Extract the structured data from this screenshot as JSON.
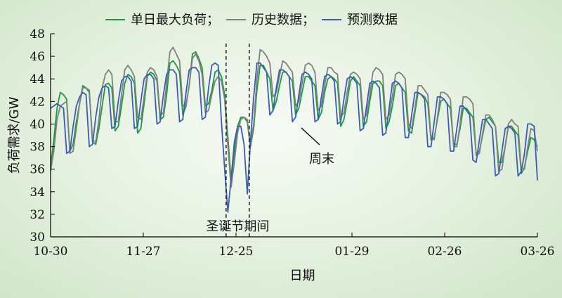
{
  "chart_data": {
    "type": "line",
    "xlabel": "日期",
    "ylabel": "负荷需求/GW",
    "ylim": [
      30,
      48
    ],
    "yticks": [
      30,
      32,
      34,
      36,
      38,
      40,
      42,
      44,
      46,
      48
    ],
    "x_start": "10-30",
    "x_end": "03-26",
    "xticks": [
      {
        "label": "10-30",
        "day": 0
      },
      {
        "label": "11-27",
        "day": 28
      },
      {
        "label": "12-25",
        "day": 56
      },
      {
        "label": "01-29",
        "day": 91
      },
      {
        "label": "02-26",
        "day": 119
      },
      {
        "label": "03-26",
        "day": 147
      }
    ],
    "grid": false,
    "legend_position": "top",
    "legend_separator": "；",
    "series": [
      {
        "name": "单日最大负荷",
        "color": "#1a9a3c",
        "values": [
          36.2,
          38.6,
          41.4,
          42.8,
          42.6,
          42.2,
          37.6,
          38.2,
          40.2,
          41.8,
          43.4,
          43.2,
          42.8,
          38.4,
          38.2,
          39.6,
          41.6,
          43.5,
          43.6,
          43.2,
          39.4,
          39.8,
          41.6,
          43.6,
          44.4,
          44.2,
          43.6,
          39.2,
          39.6,
          41.8,
          44.2,
          44.6,
          44.4,
          43.8,
          40.4,
          40.6,
          42.6,
          45.4,
          45.6,
          45.2,
          44.6,
          40.8,
          41.6,
          43.4,
          46.2,
          46.4,
          45.8,
          45.0,
          41.6,
          41.8,
          43.0,
          44.6,
          44.8,
          44.2,
          42.6,
          38.8,
          35.0,
          37.4,
          39.8,
          40.6,
          40.6,
          40.2,
          38.0,
          39.6,
          43.0,
          45.2,
          45.2,
          44.6,
          44.0,
          41.2,
          42.0,
          43.4,
          44.6,
          44.6,
          44.2,
          43.8,
          40.8,
          41.4,
          42.8,
          44.2,
          44.2,
          43.8,
          43.4,
          40.4,
          41.0,
          42.8,
          44.0,
          44.2,
          44.0,
          43.6,
          39.8,
          40.4,
          42.0,
          43.8,
          44.2,
          43.8,
          43.4,
          39.8,
          40.2,
          42.0,
          43.6,
          43.8,
          43.8,
          43.4,
          39.6,
          40.2,
          41.6,
          43.4,
          43.6,
          43.2,
          42.8,
          39.4,
          39.2,
          41.0,
          42.8,
          42.6,
          42.4,
          41.8,
          38.6,
          38.8,
          40.4,
          42.0,
          42.2,
          41.8,
          41.4,
          38.2,
          38.2,
          39.6,
          41.4,
          41.4,
          41.0,
          40.6,
          37.4,
          37.6,
          39.0,
          40.4,
          40.6,
          40.2,
          39.8,
          36.6,
          36.6,
          38.0,
          39.8,
          39.8,
          39.4,
          39.0,
          35.6,
          36.2,
          37.6,
          38.8,
          38.6,
          38.0
        ]
      },
      {
        "name": "历史数据",
        "color": "#808080",
        "values": [
          35.8,
          37.6,
          40.4,
          41.6,
          41.8,
          42.0,
          37.4,
          37.6,
          39.6,
          41.8,
          43.2,
          43.2,
          43.0,
          38.6,
          38.4,
          40.4,
          43.2,
          44.4,
          44.8,
          44.4,
          40.2,
          40.2,
          42.6,
          44.8,
          45.2,
          44.8,
          44.2,
          40.6,
          40.4,
          42.4,
          44.6,
          45.0,
          44.8,
          44.2,
          40.8,
          41.0,
          43.6,
          46.4,
          46.8,
          46.2,
          45.6,
          41.6,
          41.8,
          43.4,
          45.8,
          46.2,
          45.6,
          44.4,
          41.0,
          41.2,
          42.6,
          43.8,
          44.2,
          43.8,
          42.2,
          38.0,
          34.4,
          36.6,
          39.2,
          40.4,
          40.6,
          40.4,
          38.2,
          40.0,
          44.0,
          46.6,
          46.4,
          46.0,
          45.4,
          42.4,
          42.8,
          44.2,
          45.6,
          45.4,
          45.0,
          44.6,
          41.6,
          42.0,
          43.6,
          45.2,
          45.4,
          45.2,
          44.6,
          41.2,
          41.6,
          43.4,
          45.0,
          45.0,
          44.6,
          44.4,
          40.6,
          41.0,
          42.8,
          44.4,
          44.6,
          44.4,
          44.0,
          40.4,
          40.8,
          42.6,
          44.6,
          45.0,
          44.8,
          44.4,
          40.4,
          40.8,
          42.4,
          44.4,
          44.6,
          44.4,
          44.0,
          40.0,
          39.6,
          41.4,
          43.4,
          43.4,
          43.0,
          42.6,
          38.8,
          38.6,
          40.6,
          42.8,
          42.8,
          42.6,
          42.2,
          38.0,
          38.0,
          40.0,
          42.4,
          42.4,
          42.2,
          41.8,
          37.2,
          37.4,
          39.2,
          40.8,
          40.8,
          40.4,
          39.8,
          35.8,
          36.0,
          38.0,
          40.0,
          40.4,
          40.0,
          39.8,
          35.8,
          36.0,
          38.0,
          39.6,
          39.4,
          37.6
        ]
      },
      {
        "name": "预测数据",
        "color": "#3a5cb8",
        "values": [
          41.4,
          41.6,
          41.8,
          41.6,
          41.4,
          37.4,
          37.6,
          39.8,
          41.6,
          42.4,
          42.8,
          42.6,
          38.0,
          38.2,
          40.6,
          42.4,
          43.2,
          43.4,
          43.2,
          39.6,
          39.8,
          42.0,
          43.8,
          44.2,
          44.2,
          43.8,
          39.6,
          39.8,
          42.0,
          44.0,
          44.4,
          44.4,
          44.0,
          40.0,
          40.2,
          42.6,
          44.4,
          44.8,
          44.8,
          44.4,
          40.2,
          40.4,
          42.8,
          44.8,
          45.0,
          45.0,
          44.6,
          40.4,
          40.6,
          43.2,
          45.2,
          45.4,
          45.2,
          40.2,
          36.0,
          32.2,
          35.2,
          38.4,
          39.8,
          39.8,
          38.2,
          33.8,
          38.4,
          42.4,
          45.4,
          45.4,
          45.0,
          44.6,
          40.8,
          41.2,
          43.2,
          44.8,
          44.8,
          44.6,
          44.2,
          40.2,
          40.6,
          42.6,
          44.4,
          44.6,
          44.4,
          44.0,
          40.2,
          40.4,
          42.4,
          44.2,
          44.4,
          44.2,
          43.8,
          40.0,
          40.2,
          42.2,
          44.0,
          44.2,
          44.0,
          43.6,
          39.4,
          39.6,
          41.6,
          43.6,
          43.8,
          43.6,
          43.2,
          39.0,
          39.2,
          41.4,
          43.6,
          43.8,
          43.6,
          43.2,
          38.8,
          38.8,
          40.8,
          42.8,
          42.8,
          42.6,
          42.2,
          38.0,
          38.0,
          40.2,
          42.4,
          42.4,
          42.2,
          41.8,
          37.6,
          37.6,
          39.6,
          41.6,
          41.6,
          41.2,
          40.8,
          36.8,
          36.6,
          38.6,
          40.4,
          40.4,
          40.0,
          39.6,
          35.4,
          35.6,
          37.6,
          39.6,
          39.8,
          39.6,
          39.2,
          35.4,
          35.8,
          37.4,
          40.0,
          40.0,
          39.8,
          35.0
        ]
      }
    ],
    "annotations": {
      "holiday_label": "圣诞节期间",
      "holiday_start_day": 53,
      "holiday_end_day": 60,
      "weekend_label": "周末"
    }
  }
}
